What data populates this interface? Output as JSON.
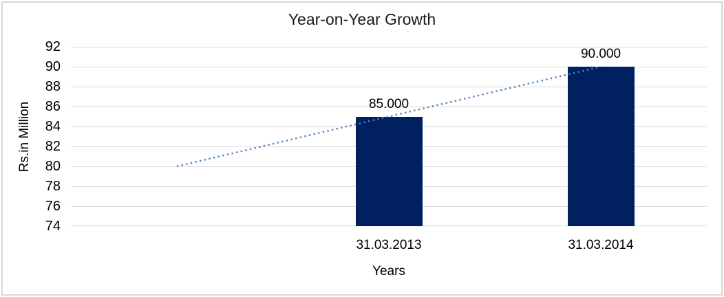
{
  "chart_data": {
    "type": "bar",
    "title": "Year-on-Year Growth",
    "xlabel": "Years",
    "ylabel": "Rs.in Million",
    "categories": [
      "",
      "31.03.2013",
      "31.03.2014"
    ],
    "series": [
      {
        "values": [
          null,
          85,
          90
        ],
        "data_labels": [
          "",
          "85.000",
          "90.000"
        ],
        "color": "#002060"
      }
    ],
    "trendline": {
      "style": "dotted",
      "color": "#4F81BD",
      "values": [
        80,
        85,
        90
      ],
      "start_category_index": 0,
      "end_category_index": 2
    },
    "ylim": [
      74,
      92
    ],
    "yticks": [
      92,
      90,
      88,
      86,
      84,
      82,
      80,
      78,
      76,
      74
    ],
    "grid": "horizontal",
    "legend": "none",
    "colors": {
      "gridline": "#D9D9D9",
      "chart_border": "#D9D9D9",
      "background": "#FFFFFF",
      "text": "#000000"
    }
  }
}
